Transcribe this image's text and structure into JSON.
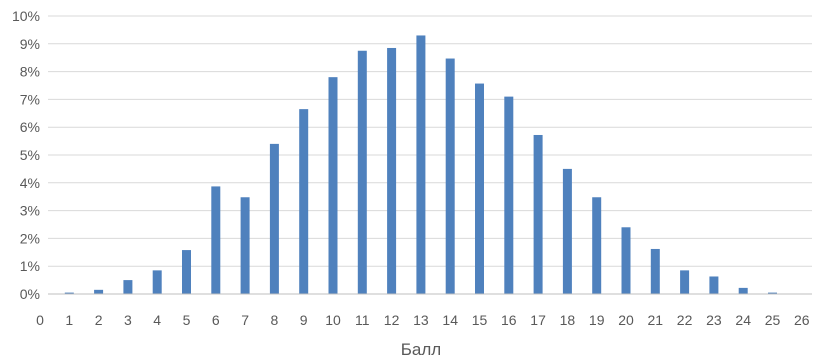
{
  "chart_data": {
    "type": "bar",
    "title": "",
    "xlabel": "Балл",
    "ylabel": "",
    "x": [
      1,
      2,
      3,
      4,
      5,
      6,
      7,
      8,
      9,
      10,
      11,
      12,
      13,
      14,
      15,
      16,
      17,
      18,
      19,
      20,
      21,
      22,
      23,
      24,
      25
    ],
    "values": [
      0.05,
      0.15,
      0.5,
      0.85,
      1.58,
      3.87,
      3.48,
      5.4,
      6.65,
      7.8,
      8.75,
      8.85,
      9.3,
      8.47,
      7.57,
      7.1,
      5.72,
      4.5,
      3.48,
      2.4,
      1.62,
      0.85,
      0.63,
      0.22,
      0.05
    ],
    "x_ticks": [
      "0",
      "1",
      "2",
      "3",
      "4",
      "5",
      "6",
      "7",
      "8",
      "9",
      "10",
      "11",
      "12",
      "13",
      "14",
      "15",
      "16",
      "17",
      "18",
      "19",
      "20",
      "21",
      "22",
      "23",
      "24",
      "25",
      "26"
    ],
    "y_ticks": [
      "0%",
      "1%",
      "2%",
      "3%",
      "4%",
      "5%",
      "6%",
      "7%",
      "8%",
      "9%",
      "10%"
    ],
    "xlim": [
      0,
      26
    ],
    "ylim": [
      0,
      10
    ],
    "y_unit": "%",
    "grid": true,
    "legend": "none",
    "bar_color": "#4f81bd",
    "grid_color": "#d9d9d9",
    "text_color": "#595959"
  }
}
